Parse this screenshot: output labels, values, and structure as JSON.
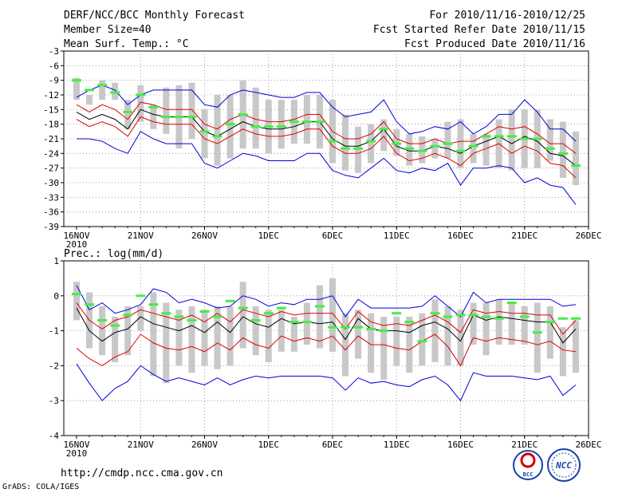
{
  "header": {
    "title": "DERF/NCC/BCC Monthly Forecast",
    "member_size": "Member Size=40",
    "period": "For 2010/11/16-2010/12/25",
    "started": "Fcst Started Refer Date 2010/11/15",
    "produced": "Fcst Produced Date 2010/11/16"
  },
  "footer": {
    "url": "http://cmdp.ncc.cma.gov.cn",
    "grads": "GrADS: COLA/IGES",
    "logo_bcc": "BCC",
    "logo_ncc": "NCC"
  },
  "colors": {
    "ensemble_mean": "#000000",
    "spread": "#e00000",
    "extremes": "#0000d8",
    "observed": "#44ee44",
    "range_bar": "#c8c8c8"
  },
  "chart_data": [
    {
      "type": "line",
      "title": "Mean Surf. Temp.: °C",
      "xlabel": "",
      "ylabel": "°C",
      "ylim": [
        -39,
        -3
      ],
      "yticks": [
        -3,
        -6,
        -9,
        -12,
        -15,
        -18,
        -21,
        -24,
        -27,
        -30,
        -33,
        -36,
        -39
      ],
      "x_tick_labels": [
        "16NOV",
        "21NOV",
        "26NOV",
        "1DEC",
        "6DEC",
        "11DEC",
        "16DEC",
        "21DEC",
        "26DEC"
      ],
      "x_year_label": "2010",
      "days": 40,
      "series": [
        {
          "name": "max",
          "color": "#0000d8",
          "values": [
            -12.5,
            -11,
            -10,
            -11,
            -14,
            -12,
            -11,
            -11,
            -11,
            -11,
            -14,
            -14.5,
            -12,
            -11,
            -11.5,
            -12,
            -12.5,
            -12.5,
            -11.5,
            -11.5,
            -14.5,
            -16.5,
            -16,
            -15.5,
            -13,
            -17.5,
            -20,
            -19.5,
            -18.5,
            -19,
            -17.5,
            -20,
            -18.5,
            -16,
            -16,
            -13,
            -15.5,
            -19,
            -19,
            -21.5
          ]
        },
        {
          "name": "upper",
          "color": "#e00000",
          "values": [
            -14,
            -15.5,
            -14,
            -15,
            -17,
            -13.5,
            -14,
            -15,
            -15,
            -15,
            -18,
            -19,
            -17,
            -16,
            -17,
            -17.5,
            -17.5,
            -17,
            -16,
            -16,
            -19.5,
            -21,
            -21,
            -20,
            -17.5,
            -21,
            -22,
            -22,
            -21,
            -22,
            -21.5,
            -21.5,
            -20,
            -18.5,
            -19,
            -18.5,
            -20,
            -22,
            -22,
            -24
          ]
        },
        {
          "name": "mean",
          "color": "#000000",
          "values": [
            -15.5,
            -17,
            -16,
            -17,
            -19,
            -15,
            -16,
            -16.5,
            -16.5,
            -16.5,
            -19.5,
            -20.5,
            -19,
            -17.5,
            -18.5,
            -19,
            -19,
            -18.5,
            -17.5,
            -17.5,
            -21,
            -22.5,
            -22.5,
            -21.5,
            -19,
            -22.5,
            -23.5,
            -23.5,
            -22.5,
            -23,
            -24,
            -22.5,
            -21.5,
            -20.5,
            -22,
            -20.5,
            -21.5,
            -24,
            -24.5,
            -26.5
          ]
        },
        {
          "name": "lower",
          "color": "#e00000",
          "values": [
            -17,
            -18.5,
            -17.5,
            -18.5,
            -20.5,
            -16.5,
            -17.5,
            -18,
            -18,
            -18,
            -21,
            -22,
            -20.5,
            -19,
            -20,
            -20.5,
            -20.5,
            -20,
            -19,
            -19,
            -22.5,
            -24,
            -24,
            -23,
            -20.5,
            -24,
            -25.5,
            -25,
            -24,
            -25,
            -26.5,
            -24,
            -23,
            -22,
            -24,
            -22.5,
            -23.5,
            -26,
            -26.5,
            -29
          ]
        },
        {
          "name": "min",
          "color": "#0000d8",
          "values": [
            -21,
            -21,
            -21.5,
            -23,
            -24,
            -19.5,
            -21,
            -22,
            -22,
            -22,
            -26,
            -27,
            -25.5,
            -24,
            -24.5,
            -25.5,
            -25.5,
            -25.5,
            -24,
            -24,
            -27.5,
            -28.5,
            -29,
            -27,
            -25,
            -27.5,
            -28,
            -27,
            -27.5,
            -26,
            -30.5,
            -27,
            -27,
            -26.5,
            -27,
            -30,
            -29,
            -30.5,
            -31,
            -34.5
          ]
        }
      ],
      "range_bars": {
        "top": [
          -8.5,
          -12,
          -9,
          -9.5,
          -13,
          -10,
          -14,
          -10.5,
          -10,
          -9.5,
          -15,
          -12,
          -12,
          -9,
          -10.5,
          -13,
          -13,
          -13,
          -12,
          -12,
          -13,
          -16,
          -18.5,
          -18,
          -17,
          -19,
          -20,
          -20.5,
          -21,
          -17.5,
          -17,
          -20,
          -20,
          -17,
          -15,
          -15,
          -15,
          -17,
          -17.5,
          -19.5
        ],
        "bottom": [
          -13,
          -14,
          -13,
          -13,
          -19,
          -17.5,
          -19,
          -20,
          -23,
          -21,
          -25,
          -26.5,
          -25,
          -23,
          -23,
          -24,
          -23,
          -22,
          -22,
          -23,
          -26,
          -27.5,
          -28,
          -26,
          -23.5,
          -24.5,
          -26.5,
          -26,
          -25,
          -25,
          -27,
          -26,
          -26.5,
          -27,
          -27.5,
          -27,
          -27,
          -25.5,
          -29,
          -30.5
        ]
      },
      "observed": [
        -9,
        -11,
        -10,
        -11.5,
        -15.5,
        -12,
        -14.5,
        -16.5,
        -16.5,
        -16.5,
        -19.5,
        -20.5,
        -18,
        -16,
        -18.5,
        -18.5,
        -18.5,
        -17.5,
        -17.5,
        -17.5,
        -21.5,
        -23,
        -23,
        -21.5,
        -19,
        -22,
        -23,
        -23.5,
        -22.5,
        -22,
        -23.5,
        -22.5,
        -20.5,
        -20.5,
        -20.5,
        -21,
        -21,
        -23,
        -24,
        -26.5
      ]
    },
    {
      "type": "line",
      "title": "Prec.: log(mm/d)",
      "xlabel": "",
      "ylabel": "log(mm/d)",
      "ylim": [
        -4,
        1
      ],
      "yticks": [
        1,
        0,
        -1,
        -2,
        -3,
        -4
      ],
      "x_tick_labels": [
        "16NOV",
        "21NOV",
        "26NOV",
        "1DEC",
        "6DEC",
        "11DEC",
        "16DEC",
        "21DEC",
        "26DEC"
      ],
      "x_year_label": "2010",
      "days": 40,
      "series": [
        {
          "name": "max",
          "color": "#0000d8",
          "values": [
            0.3,
            -0.4,
            -0.2,
            -0.5,
            -0.4,
            -0.25,
            0.2,
            0.1,
            -0.2,
            -0.1,
            -0.2,
            -0.35,
            -0.3,
            0.0,
            -0.1,
            -0.3,
            -0.2,
            -0.25,
            -0.1,
            -0.1,
            0.0,
            -0.6,
            -0.1,
            -0.35,
            -0.35,
            -0.35,
            -0.35,
            -0.3,
            0.0,
            -0.3,
            -0.6,
            0.1,
            -0.2,
            -0.1,
            -0.1,
            -0.1,
            -0.1,
            -0.1,
            -0.3,
            -0.25
          ]
        },
        {
          "name": "upper",
          "color": "#e00000",
          "values": [
            -0.2,
            -0.7,
            -0.95,
            -0.7,
            -0.6,
            -0.4,
            -0.5,
            -0.6,
            -0.7,
            -0.55,
            -0.75,
            -0.5,
            -0.75,
            -0.4,
            -0.5,
            -0.6,
            -0.45,
            -0.55,
            -0.5,
            -0.5,
            -0.5,
            -0.95,
            -0.45,
            -0.75,
            -0.85,
            -0.8,
            -0.85,
            -0.7,
            -0.55,
            -0.75,
            -1.05,
            -0.4,
            -0.5,
            -0.45,
            -0.5,
            -0.5,
            -0.55,
            -0.55,
            -1.1,
            -0.7
          ]
        },
        {
          "name": "mean",
          "color": "#000000",
          "values": [
            -0.35,
            -1.0,
            -1.3,
            -1.05,
            -0.95,
            -0.6,
            -0.8,
            -0.9,
            -1.0,
            -0.85,
            -1.05,
            -0.75,
            -1.05,
            -0.6,
            -0.8,
            -0.9,
            -0.65,
            -0.8,
            -0.75,
            -0.8,
            -0.75,
            -1.25,
            -0.65,
            -0.95,
            -1.0,
            -1.0,
            -1.05,
            -0.85,
            -0.75,
            -0.95,
            -1.3,
            -0.55,
            -0.7,
            -0.6,
            -0.65,
            -0.7,
            -0.75,
            -0.75,
            -1.35,
            -0.95
          ]
        },
        {
          "name": "lower",
          "color": "#e00000",
          "values": [
            -1.5,
            -1.8,
            -2.0,
            -1.75,
            -1.6,
            -1.1,
            -1.35,
            -1.5,
            -1.55,
            -1.45,
            -1.6,
            -1.35,
            -1.55,
            -1.2,
            -1.4,
            -1.5,
            -1.15,
            -1.3,
            -1.2,
            -1.3,
            -1.15,
            -1.55,
            -1.15,
            -1.4,
            -1.4,
            -1.5,
            -1.55,
            -1.3,
            -1.1,
            -1.45,
            -2.0,
            -1.2,
            -1.3,
            -1.2,
            -1.25,
            -1.3,
            -1.4,
            -1.3,
            -1.55,
            -1.6
          ]
        },
        {
          "name": "min",
          "color": "#0000d8",
          "values": [
            -1.95,
            -2.5,
            -3.0,
            -2.65,
            -2.45,
            -2.0,
            -2.25,
            -2.45,
            -2.35,
            -2.45,
            -2.55,
            -2.35,
            -2.55,
            -2.4,
            -2.3,
            -2.35,
            -2.3,
            -2.3,
            -2.3,
            -2.3,
            -2.35,
            -2.7,
            -2.35,
            -2.5,
            -2.45,
            -2.55,
            -2.6,
            -2.4,
            -2.3,
            -2.55,
            -3.0,
            -2.2,
            -2.3,
            -2.3,
            -2.3,
            -2.35,
            -2.4,
            -2.3,
            -2.85,
            -2.55
          ]
        },
        {
          "name": "min_tail",
          "color": "#0000d8",
          "values": [
            null,
            null,
            null,
            null,
            null,
            null,
            null,
            null,
            null,
            null,
            null,
            null,
            null,
            null,
            null,
            null,
            null,
            null,
            null,
            null,
            null,
            null,
            null,
            null,
            null,
            null,
            null,
            null,
            null,
            null,
            null,
            null,
            null,
            null,
            null,
            null,
            null,
            null,
            null,
            null
          ]
        }
      ],
      "range_bars": {
        "top": [
          0.4,
          0.1,
          -0.3,
          -0.6,
          -0.3,
          -0.3,
          0.1,
          -0.2,
          -0.4,
          -0.3,
          -0.4,
          -0.3,
          -0.3,
          0.4,
          -0.3,
          -0.4,
          -0.4,
          -0.6,
          -0.2,
          0.3,
          0.5,
          -0.5,
          -0.4,
          -0.5,
          -0.6,
          -0.6,
          -0.6,
          -0.5,
          -0.1,
          -0.3,
          -0.4,
          -0.2,
          -0.2,
          -0.1,
          -0.2,
          -0.3,
          -0.2,
          -0.3,
          -0.9,
          -0.7
        ],
        "bottom": [
          -0.7,
          -1.5,
          -1.7,
          -1.9,
          -1.7,
          -1.0,
          -2.3,
          -2.5,
          -2.0,
          -2.2,
          -2.0,
          -2.1,
          -2.0,
          -1.5,
          -1.7,
          -1.9,
          -1.6,
          -1.6,
          -1.4,
          -1.5,
          -1.6,
          -2.3,
          -1.8,
          -2.2,
          -2.4,
          -2.0,
          -2.2,
          -2.0,
          -1.9,
          -2.0,
          -2.0,
          -1.4,
          -1.7,
          -1.4,
          -1.4,
          -1.4,
          -2.2,
          -1.8,
          -2.3,
          -2.2
        ]
      },
      "observed": [
        0.05,
        -0.25,
        -0.7,
        -0.85,
        -0.55,
        0.0,
        -0.25,
        -0.5,
        -0.6,
        -0.7,
        -0.45,
        -0.6,
        -0.15,
        -0.35,
        -0.7,
        -0.5,
        -0.35,
        -0.75,
        -0.75,
        -0.3,
        -0.9,
        -0.9,
        -0.9,
        -0.95,
        -1.0,
        -0.5,
        -0.75,
        -1.3,
        -0.5,
        -0.6,
        -0.55,
        -0.55,
        -0.6,
        -0.65,
        -0.2,
        -0.6,
        -1.05,
        -0.75,
        -0.65,
        -0.65
      ]
    }
  ]
}
